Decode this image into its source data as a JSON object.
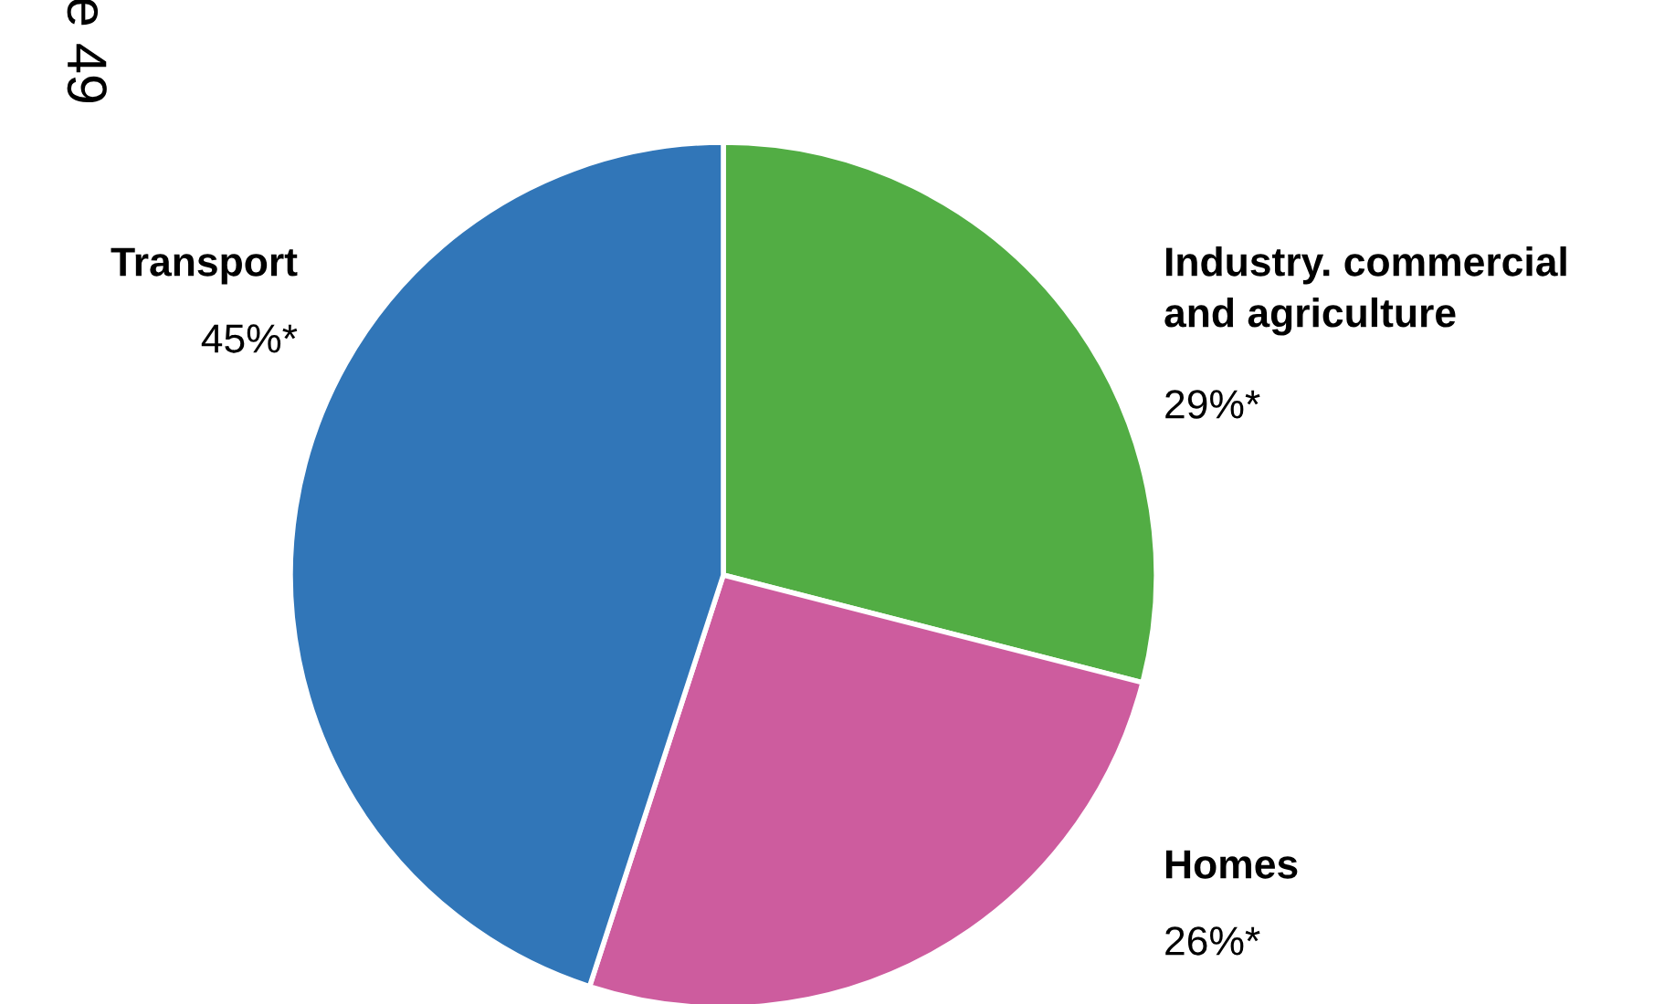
{
  "chart_data": {
    "type": "pie",
    "categories": [
      "Industry. commercial\nand agriculture",
      "Homes",
      "Transport"
    ],
    "values": [
      29,
      26,
      45
    ],
    "value_labels": [
      "29%*",
      "26%*",
      "45%*"
    ],
    "colors": [
      "#52ad44",
      "#cd5c9e",
      "#3176b8"
    ],
    "annotations": [
      "e 49"
    ]
  }
}
